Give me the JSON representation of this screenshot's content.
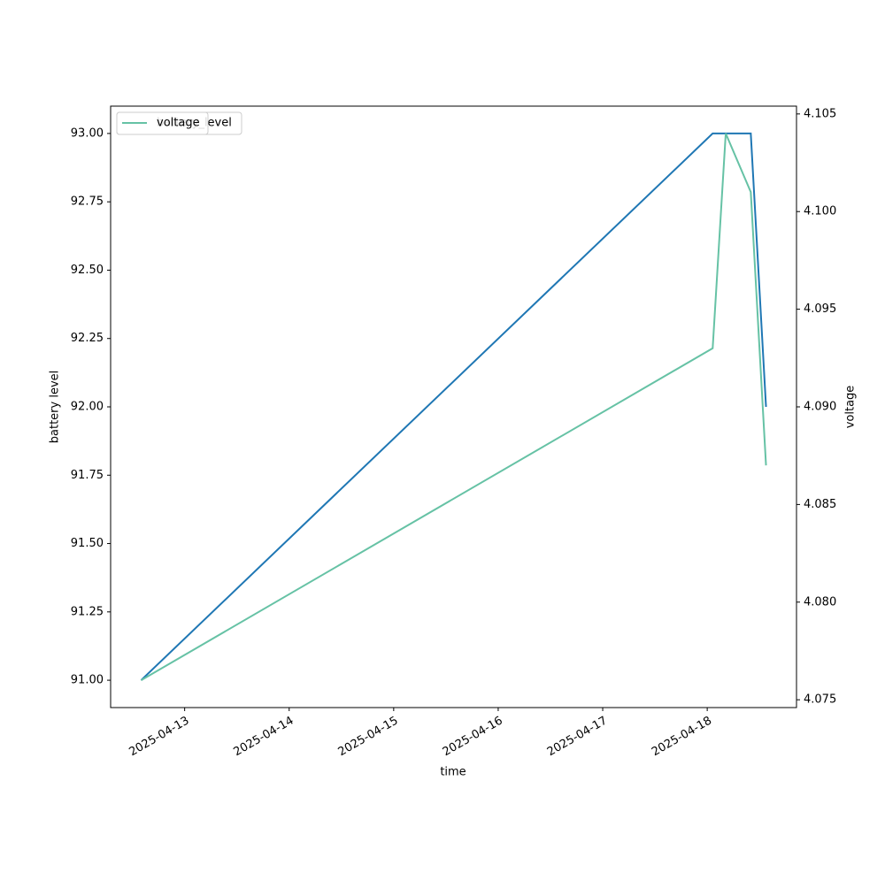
{
  "chart_data": {
    "type": "line",
    "xlabel": "time",
    "ylabel": "battery level",
    "y2label": "voltage",
    "x": [
      "2025-04-12T14:00",
      "2025-04-18T01:15",
      "2025-04-18T04:15",
      "2025-04-18T10:00",
      "2025-04-18T13:30"
    ],
    "series": [
      {
        "name": "battery_level",
        "color": "#1f77b4",
        "values": [
          91,
          93,
          93,
          93,
          92
        ]
      },
      {
        "name": "voltage",
        "color": "#66c2a5",
        "axis": "y2",
        "values": [
          4.076,
          4.093,
          4.104,
          4.101,
          4.087
        ]
      }
    ],
    "xlim": [
      "2025-04-12T07:00",
      "2025-04-18T20:30"
    ],
    "xticks": [
      "2025-04-13",
      "2025-04-14",
      "2025-04-15",
      "2025-04-16",
      "2025-04-17",
      "2025-04-18"
    ],
    "ylim": [
      90.9,
      93.1
    ],
    "yticks": [
      {
        "value": 91,
        "label": "91.00"
      },
      {
        "value": 91.25,
        "label": "91.25"
      },
      {
        "value": 91.5,
        "label": "91.50"
      },
      {
        "value": 91.75,
        "label": "91.75"
      },
      {
        "value": 92,
        "label": "92.00"
      },
      {
        "value": 92.25,
        "label": "92.25"
      },
      {
        "value": 92.5,
        "label": "92.50"
      },
      {
        "value": 92.75,
        "label": "92.75"
      },
      {
        "value": 93,
        "label": "93.00"
      }
    ],
    "y2lim": [
      4.0746,
      4.1054
    ],
    "y2ticks": [
      4.075,
      {
        "value": 4.08,
        "label": "4.080"
      },
      4.085,
      {
        "value": 4.09,
        "label": "4.090"
      },
      4.095,
      {
        "value": 4.1,
        "label": "4.100"
      },
      4.105
    ],
    "legend": "upper left",
    "grid": false
  }
}
